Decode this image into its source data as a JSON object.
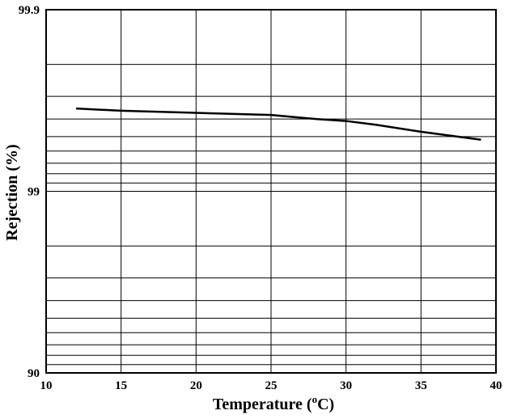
{
  "chart_data": {
    "type": "line",
    "title": "",
    "xlabel": "Temperature (oC)",
    "xlabel_parts": {
      "prefix": "Temperature (",
      "superscript": "o",
      "suffix": "C)"
    },
    "ylabel": "Rejection (%)",
    "xlim": [
      10,
      40
    ],
    "ylim": [
      90,
      99.9
    ],
    "y_scale": "log of (100 - rejection), reversed",
    "grid": true,
    "x_ticks": [
      "10",
      "15",
      "20",
      "25",
      "30",
      "35",
      "40"
    ],
    "y_ticks": [
      "90",
      "99",
      "99.9"
    ],
    "y_gridlines": [
      91,
      92,
      93,
      94,
      95,
      96,
      97,
      98,
      99,
      99.1,
      99.2,
      99.3,
      99.4,
      99.5,
      99.6,
      99.7,
      99.8
    ],
    "series": [
      {
        "x": [
          12,
          15,
          20,
          25,
          28,
          30,
          32,
          35,
          39
        ],
        "y": [
          99.65,
          99.64,
          99.63,
          99.62,
          99.6,
          99.59,
          99.57,
          99.53,
          99.48
        ],
        "color": "#000000"
      }
    ]
  }
}
